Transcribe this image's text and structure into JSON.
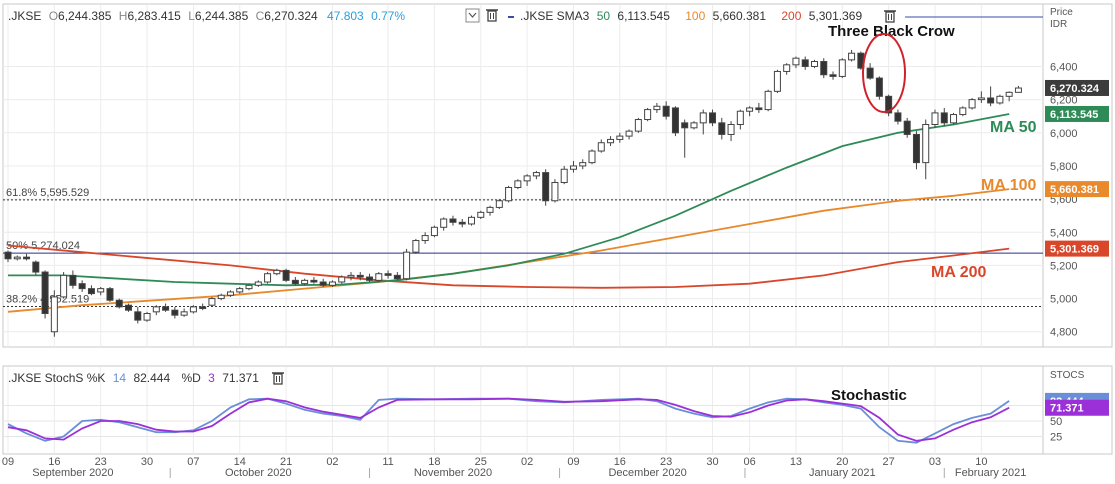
{
  "main_header": {
    "symbol": ".JKSE",
    "open_label": "O",
    "open": "6,244.385",
    "high_label": "H",
    "high": "6,283.415",
    "low_label": "L",
    "low": "6,244.385",
    "close_label": "C",
    "close": "6,270.324",
    "change": "47.803",
    "change_pct": "0.77%",
    "sma_label": ".JKSE SMA3",
    "sma_50_period": "50",
    "sma_50_value": "6,113.545",
    "sma_100_period": "100",
    "sma_100_value": "5,660.381",
    "sma_200_period": "200",
    "sma_200_value": "5,301.369",
    "price_axis_title": "Price",
    "price_axis_unit": "IDR"
  },
  "stoch_header": {
    "label": ".JKSE StochS %K",
    "k_period": "14",
    "k_value": "82.444",
    "d_label": "%D",
    "d_period": "3",
    "d_value": "71.371",
    "axis_title": "STOCS"
  },
  "annotations": {
    "three_black_crow": "Three Black Crow",
    "ma50": "MA 50",
    "ma100": "MA 100",
    "ma200": "MA 200",
    "stochastic": "Stochastic"
  },
  "fib_levels": [
    {
      "pct": "61.8%",
      "value_text": "5,595.529",
      "value": 5595.529
    },
    {
      "pct": "50%",
      "value_text": "5,274.024",
      "value": 5274.024
    },
    {
      "pct": "38.2%",
      "value_text": "4,952.519",
      "value": 4952.519
    }
  ],
  "price_badges": [
    {
      "text": "6,270.324",
      "value": 6270.324,
      "color": "#3c3c3c"
    },
    {
      "text": "6,113.545",
      "value": 6113.545,
      "color": "#2e8b57"
    },
    {
      "text": "5,660.381",
      "value": 5660.381,
      "color": "#e8892b"
    },
    {
      "text": "5,301.369",
      "value": 5301.369,
      "color": "#d9472b"
    }
  ],
  "stoch_badges": [
    {
      "text": "82.444",
      "value": 82.444,
      "color": "#6a8fd8"
    },
    {
      "text": "71.371",
      "value": 71.371,
      "color": "#9b30d9"
    }
  ],
  "chart_data": {
    "type": "candlestick",
    "y_ticks": [
      "6,400",
      "6,200",
      "6,000",
      "5,800",
      "5,600",
      "5,400",
      "5,200",
      "5,000",
      "4,800"
    ],
    "y_tick_values": [
      6400,
      6200,
      6000,
      5800,
      5600,
      5400,
      5200,
      5000,
      4800
    ],
    "ylim": [
      4720,
      6620
    ],
    "day_ticks": [
      "09",
      "16",
      "23",
      "30",
      "07",
      "14",
      "21",
      "02",
      "11",
      "18",
      "25",
      "02",
      "09",
      "16",
      "23",
      "30",
      "06",
      "13",
      "20",
      "27",
      "03",
      "10"
    ],
    "day_tick_index": [
      0,
      5,
      10,
      15,
      20,
      25,
      30,
      35,
      41,
      46,
      51,
      56,
      61,
      66,
      71,
      76,
      80,
      85,
      90,
      95,
      100,
      105
    ],
    "month_labels": [
      "September 2020",
      "October 2020",
      "November 2020",
      "December 2020",
      "January 2021",
      "February 2021"
    ],
    "month_label_index": [
      7,
      27,
      48,
      69,
      90,
      106
    ],
    "month_separator_index": [
      17.5,
      39,
      59.5,
      79.5,
      101
    ],
    "candles": [
      {
        "o": 5280,
        "h": 5290,
        "l": 5220,
        "c": 5240
      },
      {
        "o": 5240,
        "h": 5260,
        "l": 5230,
        "c": 5250
      },
      {
        "o": 5250,
        "h": 5270,
        "l": 5230,
        "c": 5240
      },
      {
        "o": 5220,
        "h": 5230,
        "l": 5140,
        "c": 5160
      },
      {
        "o": 5160,
        "h": 5170,
        "l": 4880,
        "c": 4910
      },
      {
        "o": 4800,
        "h": 5050,
        "l": 4770,
        "c": 5010
      },
      {
        "o": 5010,
        "h": 5160,
        "l": 5000,
        "c": 5140
      },
      {
        "o": 5140,
        "h": 5170,
        "l": 5060,
        "c": 5080
      },
      {
        "o": 5090,
        "h": 5110,
        "l": 5040,
        "c": 5060
      },
      {
        "o": 5060,
        "h": 5080,
        "l": 5020,
        "c": 5030
      },
      {
        "o": 5040,
        "h": 5070,
        "l": 5020,
        "c": 5060
      },
      {
        "o": 5060,
        "h": 5070,
        "l": 4980,
        "c": 4990
      },
      {
        "o": 4990,
        "h": 5000,
        "l": 4940,
        "c": 4950
      },
      {
        "o": 4960,
        "h": 4970,
        "l": 4920,
        "c": 4930
      },
      {
        "o": 4920,
        "h": 4950,
        "l": 4850,
        "c": 4870
      },
      {
        "o": 4870,
        "h": 4920,
        "l": 4860,
        "c": 4910
      },
      {
        "o": 4920,
        "h": 4960,
        "l": 4900,
        "c": 4950
      },
      {
        "o": 4950,
        "h": 4970,
        "l": 4920,
        "c": 4930
      },
      {
        "o": 4930,
        "h": 4950,
        "l": 4880,
        "c": 4900
      },
      {
        "o": 4900,
        "h": 4940,
        "l": 4890,
        "c": 4920
      },
      {
        "o": 4920,
        "h": 4960,
        "l": 4910,
        "c": 4950
      },
      {
        "o": 4950,
        "h": 4970,
        "l": 4930,
        "c": 4940
      },
      {
        "o": 4960,
        "h": 5010,
        "l": 4950,
        "c": 5000
      },
      {
        "o": 5000,
        "h": 5030,
        "l": 4990,
        "c": 5020
      },
      {
        "o": 5020,
        "h": 5050,
        "l": 5010,
        "c": 5040
      },
      {
        "o": 5040,
        "h": 5070,
        "l": 5030,
        "c": 5060
      },
      {
        "o": 5060,
        "h": 5090,
        "l": 5050,
        "c": 5080
      },
      {
        "o": 5080,
        "h": 5110,
        "l": 5070,
        "c": 5100
      },
      {
        "o": 5100,
        "h": 5160,
        "l": 5090,
        "c": 5150
      },
      {
        "o": 5150,
        "h": 5180,
        "l": 5140,
        "c": 5170
      },
      {
        "o": 5170,
        "h": 5180,
        "l": 5100,
        "c": 5110
      },
      {
        "o": 5110,
        "h": 5130,
        "l": 5080,
        "c": 5090
      },
      {
        "o": 5090,
        "h": 5120,
        "l": 5080,
        "c": 5110
      },
      {
        "o": 5110,
        "h": 5130,
        "l": 5090,
        "c": 5100
      },
      {
        "o": 5100,
        "h": 5120,
        "l": 5070,
        "c": 5080
      },
      {
        "o": 5080,
        "h": 5110,
        "l": 5070,
        "c": 5100
      },
      {
        "o": 5100,
        "h": 5140,
        "l": 5090,
        "c": 5130
      },
      {
        "o": 5130,
        "h": 5160,
        "l": 5110,
        "c": 5140
      },
      {
        "o": 5140,
        "h": 5160,
        "l": 5110,
        "c": 5130
      },
      {
        "o": 5130,
        "h": 5150,
        "l": 5100,
        "c": 5110
      },
      {
        "o": 5110,
        "h": 5160,
        "l": 5100,
        "c": 5150
      },
      {
        "o": 5150,
        "h": 5170,
        "l": 5120,
        "c": 5140
      },
      {
        "o": 5140,
        "h": 5160,
        "l": 5110,
        "c": 5120
      },
      {
        "o": 5120,
        "h": 5300,
        "l": 5110,
        "c": 5280
      },
      {
        "o": 5280,
        "h": 5360,
        "l": 5270,
        "c": 5350
      },
      {
        "o": 5350,
        "h": 5400,
        "l": 5330,
        "c": 5380
      },
      {
        "o": 5380,
        "h": 5440,
        "l": 5370,
        "c": 5430
      },
      {
        "o": 5430,
        "h": 5490,
        "l": 5410,
        "c": 5480
      },
      {
        "o": 5480,
        "h": 5500,
        "l": 5440,
        "c": 5460
      },
      {
        "o": 5460,
        "h": 5480,
        "l": 5430,
        "c": 5450
      },
      {
        "o": 5450,
        "h": 5500,
        "l": 5440,
        "c": 5490
      },
      {
        "o": 5490,
        "h": 5530,
        "l": 5480,
        "c": 5520
      },
      {
        "o": 5520,
        "h": 5560,
        "l": 5500,
        "c": 5550
      },
      {
        "o": 5550,
        "h": 5600,
        "l": 5540,
        "c": 5590
      },
      {
        "o": 5590,
        "h": 5680,
        "l": 5580,
        "c": 5670
      },
      {
        "o": 5670,
        "h": 5720,
        "l": 5660,
        "c": 5710
      },
      {
        "o": 5710,
        "h": 5750,
        "l": 5680,
        "c": 5740
      },
      {
        "o": 5740,
        "h": 5770,
        "l": 5720,
        "c": 5760
      },
      {
        "o": 5760,
        "h": 5780,
        "l": 5560,
        "c": 5590
      },
      {
        "o": 5590,
        "h": 5720,
        "l": 5580,
        "c": 5700
      },
      {
        "o": 5700,
        "h": 5800,
        "l": 5690,
        "c": 5780
      },
      {
        "o": 5780,
        "h": 5830,
        "l": 5760,
        "c": 5800
      },
      {
        "o": 5800,
        "h": 5840,
        "l": 5780,
        "c": 5820
      },
      {
        "o": 5820,
        "h": 5900,
        "l": 5810,
        "c": 5890
      },
      {
        "o": 5890,
        "h": 5960,
        "l": 5880,
        "c": 5940
      },
      {
        "o": 5940,
        "h": 5980,
        "l": 5920,
        "c": 5960
      },
      {
        "o": 5960,
        "h": 6000,
        "l": 5940,
        "c": 5980
      },
      {
        "o": 5980,
        "h": 6020,
        "l": 5960,
        "c": 6010
      },
      {
        "o": 6010,
        "h": 6090,
        "l": 6000,
        "c": 6080
      },
      {
        "o": 6080,
        "h": 6150,
        "l": 6070,
        "c": 6140
      },
      {
        "o": 6140,
        "h": 6180,
        "l": 6120,
        "c": 6160
      },
      {
        "o": 6160,
        "h": 6190,
        "l": 6080,
        "c": 6100
      },
      {
        "o": 6150,
        "h": 6160,
        "l": 5980,
        "c": 6000
      },
      {
        "o": 6060,
        "h": 6080,
        "l": 5850,
        "c": 6030
      },
      {
        "o": 6030,
        "h": 6070,
        "l": 6020,
        "c": 6060
      },
      {
        "o": 6060,
        "h": 6140,
        "l": 5990,
        "c": 6120
      },
      {
        "o": 6120,
        "h": 6140,
        "l": 6040,
        "c": 6060
      },
      {
        "o": 6060,
        "h": 6090,
        "l": 5960,
        "c": 5990
      },
      {
        "o": 5990,
        "h": 6070,
        "l": 5950,
        "c": 6050
      },
      {
        "o": 6050,
        "h": 6140,
        "l": 6020,
        "c": 6130
      },
      {
        "o": 6130,
        "h": 6160,
        "l": 6100,
        "c": 6150
      },
      {
        "o": 6150,
        "h": 6180,
        "l": 6120,
        "c": 6140
      },
      {
        "o": 6140,
        "h": 6260,
        "l": 6130,
        "c": 6250
      },
      {
        "o": 6250,
        "h": 6380,
        "l": 6240,
        "c": 6370
      },
      {
        "o": 6370,
        "h": 6420,
        "l": 6350,
        "c": 6410
      },
      {
        "o": 6410,
        "h": 6460,
        "l": 6390,
        "c": 6450
      },
      {
        "o": 6440,
        "h": 6460,
        "l": 6380,
        "c": 6400
      },
      {
        "o": 6400,
        "h": 6440,
        "l": 6390,
        "c": 6430
      },
      {
        "o": 6430,
        "h": 6450,
        "l": 6330,
        "c": 6350
      },
      {
        "o": 6350,
        "h": 6370,
        "l": 6320,
        "c": 6340
      },
      {
        "o": 6340,
        "h": 6450,
        "l": 6330,
        "c": 6440
      },
      {
        "o": 6440,
        "h": 6500,
        "l": 6430,
        "c": 6480
      },
      {
        "o": 6480,
        "h": 6490,
        "l": 6380,
        "c": 6390
      },
      {
        "o": 6390,
        "h": 6420,
        "l": 6320,
        "c": 6330
      },
      {
        "o": 6330,
        "h": 6340,
        "l": 6200,
        "c": 6220
      },
      {
        "o": 6220,
        "h": 6230,
        "l": 6100,
        "c": 6120
      },
      {
        "o": 6120,
        "h": 6140,
        "l": 6050,
        "c": 6070
      },
      {
        "o": 6070,
        "h": 6090,
        "l": 5970,
        "c": 5990
      },
      {
        "o": 5990,
        "h": 6010,
        "l": 5780,
        "c": 5820
      },
      {
        "o": 5820,
        "h": 6080,
        "l": 5720,
        "c": 6050
      },
      {
        "o": 6050,
        "h": 6140,
        "l": 6030,
        "c": 6120
      },
      {
        "o": 6120,
        "h": 6150,
        "l": 6040,
        "c": 6060
      },
      {
        "o": 6060,
        "h": 6120,
        "l": 6050,
        "c": 6110
      },
      {
        "o": 6110,
        "h": 6160,
        "l": 6100,
        "c": 6150
      },
      {
        "o": 6150,
        "h": 6210,
        "l": 6140,
        "c": 6200
      },
      {
        "o": 6200,
        "h": 6250,
        "l": 6180,
        "c": 6210
      },
      {
        "o": 6210,
        "h": 6280,
        "l": 6160,
        "c": 6180
      },
      {
        "o": 6180,
        "h": 6230,
        "l": 6170,
        "c": 6220
      },
      {
        "o": 6220,
        "h": 6250,
        "l": 6190,
        "c": 6244
      },
      {
        "o": 6244,
        "h": 6283,
        "l": 6244,
        "c": 6270
      }
    ],
    "sma50": [
      [
        0,
        5140
      ],
      [
        6,
        5140
      ],
      [
        12,
        5120
      ],
      [
        18,
        5100
      ],
      [
        24,
        5090
      ],
      [
        30,
        5080
      ],
      [
        36,
        5085
      ],
      [
        42,
        5110
      ],
      [
        48,
        5150
      ],
      [
        54,
        5200
      ],
      [
        60,
        5270
      ],
      [
        66,
        5370
      ],
      [
        72,
        5500
      ],
      [
        78,
        5650
      ],
      [
        84,
        5790
      ],
      [
        90,
        5920
      ],
      [
        96,
        6000
      ],
      [
        102,
        6050
      ],
      [
        108,
        6113.545
      ]
    ],
    "sma100": [
      [
        0,
        4920
      ],
      [
        8,
        4960
      ],
      [
        16,
        4990
      ],
      [
        24,
        5020
      ],
      [
        32,
        5060
      ],
      [
        40,
        5100
      ],
      [
        48,
        5150
      ],
      [
        56,
        5220
      ],
      [
        64,
        5290
      ],
      [
        72,
        5370
      ],
      [
        80,
        5450
      ],
      [
        88,
        5530
      ],
      [
        96,
        5590
      ],
      [
        102,
        5620
      ],
      [
        108,
        5660.381
      ]
    ],
    "sma200": [
      [
        0,
        5320
      ],
      [
        8,
        5280
      ],
      [
        16,
        5240
      ],
      [
        24,
        5200
      ],
      [
        32,
        5150
      ],
      [
        40,
        5110
      ],
      [
        48,
        5080
      ],
      [
        56,
        5070
      ],
      [
        64,
        5065
      ],
      [
        72,
        5070
      ],
      [
        80,
        5090
      ],
      [
        88,
        5140
      ],
      [
        96,
        5220
      ],
      [
        102,
        5260
      ],
      [
        108,
        5301.369
      ]
    ],
    "stoch_ylim": [
      0,
      100
    ],
    "stoch_y_ticks": [
      "50",
      "25"
    ],
    "stoch_y_tick_values": [
      50,
      25
    ],
    "stoch_k": [
      [
        0,
        45
      ],
      [
        2,
        30
      ],
      [
        4,
        18
      ],
      [
        6,
        25
      ],
      [
        8,
        50
      ],
      [
        10,
        52
      ],
      [
        12,
        48
      ],
      [
        14,
        40
      ],
      [
        16,
        32
      ],
      [
        18,
        32
      ],
      [
        20,
        35
      ],
      [
        22,
        50
      ],
      [
        24,
        72
      ],
      [
        26,
        85
      ],
      [
        28,
        86
      ],
      [
        30,
        78
      ],
      [
        32,
        68
      ],
      [
        34,
        62
      ],
      [
        36,
        58
      ],
      [
        38,
        52
      ],
      [
        40,
        84
      ],
      [
        42,
        86
      ],
      [
        46,
        85
      ],
      [
        50,
        86
      ],
      [
        54,
        86
      ],
      [
        57,
        82
      ],
      [
        60,
        80
      ],
      [
        64,
        84
      ],
      [
        68,
        86
      ],
      [
        70,
        82
      ],
      [
        72,
        70
      ],
      [
        74,
        62
      ],
      [
        76,
        56
      ],
      [
        78,
        58
      ],
      [
        80,
        70
      ],
      [
        82,
        80
      ],
      [
        84,
        86
      ],
      [
        86,
        85
      ],
      [
        88,
        80
      ],
      [
        90,
        76
      ],
      [
        92,
        70
      ],
      [
        94,
        40
      ],
      [
        96,
        18
      ],
      [
        98,
        15
      ],
      [
        100,
        30
      ],
      [
        102,
        45
      ],
      [
        104,
        55
      ],
      [
        106,
        62
      ],
      [
        108,
        82.444
      ]
    ],
    "stoch_d": [
      [
        0,
        40
      ],
      [
        2,
        35
      ],
      [
        4,
        22
      ],
      [
        6,
        20
      ],
      [
        8,
        38
      ],
      [
        10,
        50
      ],
      [
        12,
        50
      ],
      [
        14,
        45
      ],
      [
        16,
        36
      ],
      [
        18,
        33
      ],
      [
        20,
        33
      ],
      [
        22,
        42
      ],
      [
        24,
        62
      ],
      [
        26,
        80
      ],
      [
        28,
        86
      ],
      [
        30,
        82
      ],
      [
        32,
        72
      ],
      [
        34,
        65
      ],
      [
        36,
        60
      ],
      [
        38,
        55
      ],
      [
        40,
        72
      ],
      [
        42,
        84
      ],
      [
        46,
        85
      ],
      [
        50,
        85
      ],
      [
        54,
        86
      ],
      [
        57,
        84
      ],
      [
        60,
        81
      ],
      [
        64,
        82
      ],
      [
        68,
        85
      ],
      [
        70,
        84
      ],
      [
        72,
        76
      ],
      [
        74,
        66
      ],
      [
        76,
        58
      ],
      [
        78,
        57
      ],
      [
        80,
        64
      ],
      [
        82,
        75
      ],
      [
        84,
        83
      ],
      [
        86,
        85
      ],
      [
        88,
        82
      ],
      [
        90,
        78
      ],
      [
        92,
        74
      ],
      [
        94,
        55
      ],
      [
        96,
        28
      ],
      [
        98,
        18
      ],
      [
        100,
        22
      ],
      [
        102,
        36
      ],
      [
        104,
        48
      ],
      [
        106,
        56
      ],
      [
        108,
        71.371
      ]
    ]
  }
}
